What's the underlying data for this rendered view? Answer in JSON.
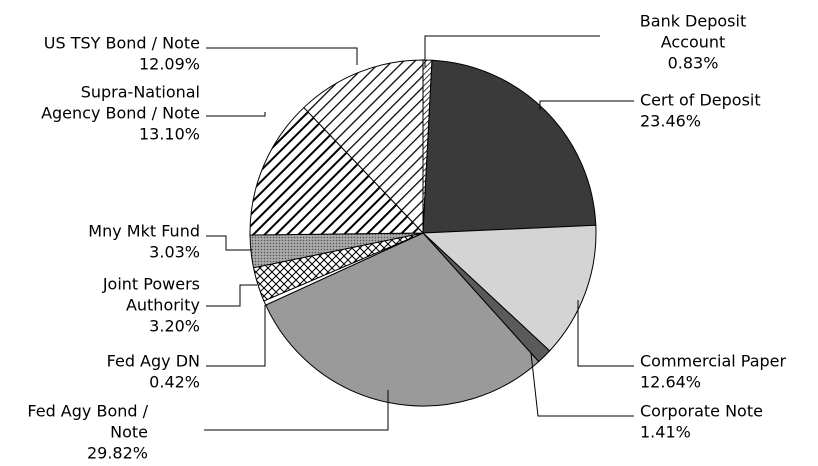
{
  "chart_data": {
    "type": "pie",
    "title": "",
    "start_angle_deg": 0,
    "direction": "clockwise",
    "slices": [
      {
        "label": [
          "Bank Deposit",
          "Account"
        ],
        "value": 0.83,
        "value_label": "0.83%",
        "fill": "#ffffff",
        "pattern": "diag-fine"
      },
      {
        "label": [
          "Cert of Deposit"
        ],
        "value": 23.46,
        "value_label": "23.46%",
        "fill": "#3a3a3a",
        "pattern": "solid"
      },
      {
        "label": [
          "Commercial Paper"
        ],
        "value": 12.64,
        "value_label": "12.64%",
        "fill": "#d4d4d4",
        "pattern": "solid"
      },
      {
        "label": [
          "Corporate Note"
        ],
        "value": 1.41,
        "value_label": "1.41%",
        "fill": "#5a5a5a",
        "pattern": "solid"
      },
      {
        "label": [
          "Fed Agy Bond /",
          "Note"
        ],
        "value": 29.82,
        "value_label": "29.82%",
        "fill": "#9a9a9a",
        "pattern": "solid"
      },
      {
        "label": [
          "Fed Agy DN"
        ],
        "value": 0.42,
        "value_label": "0.42%",
        "fill": "#ffffff",
        "pattern": "solid"
      },
      {
        "label": [
          "Joint Powers",
          "Authority"
        ],
        "value": 3.2,
        "value_label": "3.20%",
        "fill": "#ffffff",
        "pattern": "crosshatch"
      },
      {
        "label": [
          "Mny Mkt Fund"
        ],
        "value": 3.03,
        "value_label": "3.03%",
        "fill": "#9a9a9a",
        "pattern": "dots"
      },
      {
        "label": [
          "Supra-National",
          "Agency Bond / Note"
        ],
        "value": 13.1,
        "value_label": "13.10%",
        "fill": "#ffffff",
        "pattern": "diag-bold"
      },
      {
        "label": [
          "US TSY Bond / Note"
        ],
        "value": 12.09,
        "value_label": "12.09%",
        "fill": "#ffffff",
        "pattern": "diag-wide"
      }
    ]
  }
}
